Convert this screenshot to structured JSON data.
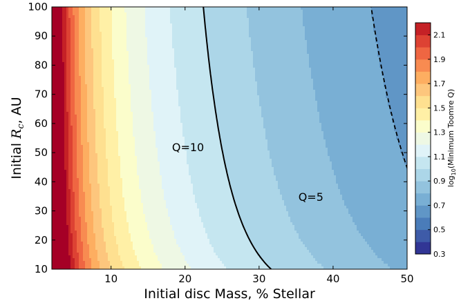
{
  "chart_data": {
    "type": "contour",
    "xlabel": "Initial disc Mass, % Stellar",
    "ylabel_prefix": "Initial ",
    "ylabel_var": "R",
    "ylabel_sub": "c",
    "ylabel_suffix": ", AU",
    "xlim": [
      2,
      50
    ],
    "ylim": [
      10,
      100
    ],
    "x_ticks": [
      10,
      20,
      30,
      40,
      50
    ],
    "y_ticks": [
      10,
      20,
      30,
      40,
      50,
      60,
      70,
      80,
      90,
      100
    ],
    "colorbar": {
      "label_prefix": "log",
      "label_sub": "10",
      "label_suffix": "(Minimum Toomre Q)",
      "range": [
        0.3,
        2.2
      ],
      "levels": [
        0.3,
        0.4,
        0.5,
        0.6,
        0.7,
        0.8,
        0.9,
        1.0,
        1.1,
        1.2,
        1.3,
        1.4,
        1.5,
        1.6,
        1.7,
        1.8,
        1.9,
        2.0,
        2.1,
        2.2
      ],
      "tick_labels": [
        "0.3",
        "0.5",
        "0.7",
        "0.9",
        "1.1",
        "1.3",
        "1.5",
        "1.7",
        "1.9",
        "2.1"
      ],
      "tick_values": [
        0.3,
        0.5,
        0.7,
        0.9,
        1.1,
        1.3,
        1.5,
        1.7,
        1.9,
        2.1
      ],
      "colors": [
        "#313695",
        "#3e5ba8",
        "#4a7cb9",
        "#6096c6",
        "#79afd4",
        "#93c3de",
        "#acd6e8",
        "#c5e6f0",
        "#e0f3f8",
        "#eef8e4",
        "#fbfdcb",
        "#fff0a6",
        "#fee090",
        "#fdc67d",
        "#fdae61",
        "#f88b51",
        "#ef6642",
        "#dd4233",
        "#c52126",
        "#a50026"
      ]
    },
    "contours": [
      {
        "label": "Q=10",
        "style": "solid",
        "label_x": 20.4,
        "label_y": 50.5
      },
      {
        "label": "Q=5",
        "style": "dashed",
        "label_x": 37.0,
        "label_y": 33.5
      }
    ],
    "model": {
      "a": 1.75,
      "b": 0.6,
      "c": 0.6,
      "k": -2.0,
      "x0": 2
    }
  }
}
